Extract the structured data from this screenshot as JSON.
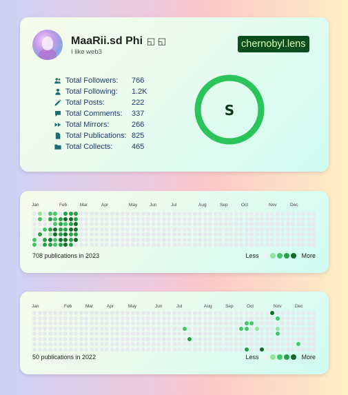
{
  "profile": {
    "name": "MaaRii.sd Phi",
    "name_glyphs": "◱ ◱",
    "bio": "I like web3",
    "handle": "chernobyl.lens",
    "ring_letter": "S",
    "colors": {
      "ring": "#2bc45a",
      "handle_bg": "#0b4d1d",
      "handle_text": "#d8ffb0"
    },
    "stats": [
      {
        "icon": "users-icon",
        "label": "Total Followers:",
        "value": "766"
      },
      {
        "icon": "user-icon",
        "label": "Total Following:",
        "value": "1.2K"
      },
      {
        "icon": "pencil-icon",
        "label": "Total Posts:",
        "value": "222"
      },
      {
        "icon": "comment-icon",
        "label": "Total Comments:",
        "value": "337"
      },
      {
        "icon": "forward-icon",
        "label": "Total Mirrors:",
        "value": "266"
      },
      {
        "icon": "file-icon",
        "label": "Total Publications:",
        "value": "825"
      },
      {
        "icon": "folder-icon",
        "label": "Total Collects:",
        "value": "465"
      }
    ]
  },
  "heatmap_2023": {
    "months": [
      "Jan",
      "Feb",
      "Mar",
      "Apr",
      "May",
      "Jun",
      "Jul",
      "Aug",
      "Sep",
      "Oct",
      "Nov",
      "Dec"
    ],
    "summary": "708 publications in 2023",
    "legend_less": "Less",
    "legend_more": "More",
    "levels": [
      "0102203330000000000000000000000000000000000000000000000",
      "0203234430000000000000000000000000000000000000000000000",
      "0000232340000000000000000000000000000000000000000000000",
      "0023433440000000000000000000000000000000000000000000000",
      "0301434330000000000000000000000000000000000000000000000",
      "2034244340000000000000000000000000000000000000000000000",
      "2033234300000000000000000000000000000000000000000000000"
    ]
  },
  "heatmap_2022": {
    "months": [
      "Jan",
      "Feb",
      "Mar",
      "Apr",
      "May",
      "Jun",
      "Jul",
      "Aug",
      "Sep",
      "Oct",
      "Nov",
      "Dec"
    ],
    "summary": "50 publications in 2022",
    "legend_less": "Less",
    "legend_more": "More",
    "levels": [
      "0000000000000000000000000000000000000000000000400000000",
      "0000000000000000000000000000000000000000000000020000000",
      "0000000000000000000000000000000000000000022000000000000",
      "0000000000000000000000000000020000000000220100010000000",
      "0000000000000000000000000000000000000000000000020000000",
      "0000000000000000000000000000003000000000000000000000000",
      "0000000000000000000000000000000000000000000000000002000",
      "0000000000000000000000000000000000000000030040000000000"
    ]
  }
}
